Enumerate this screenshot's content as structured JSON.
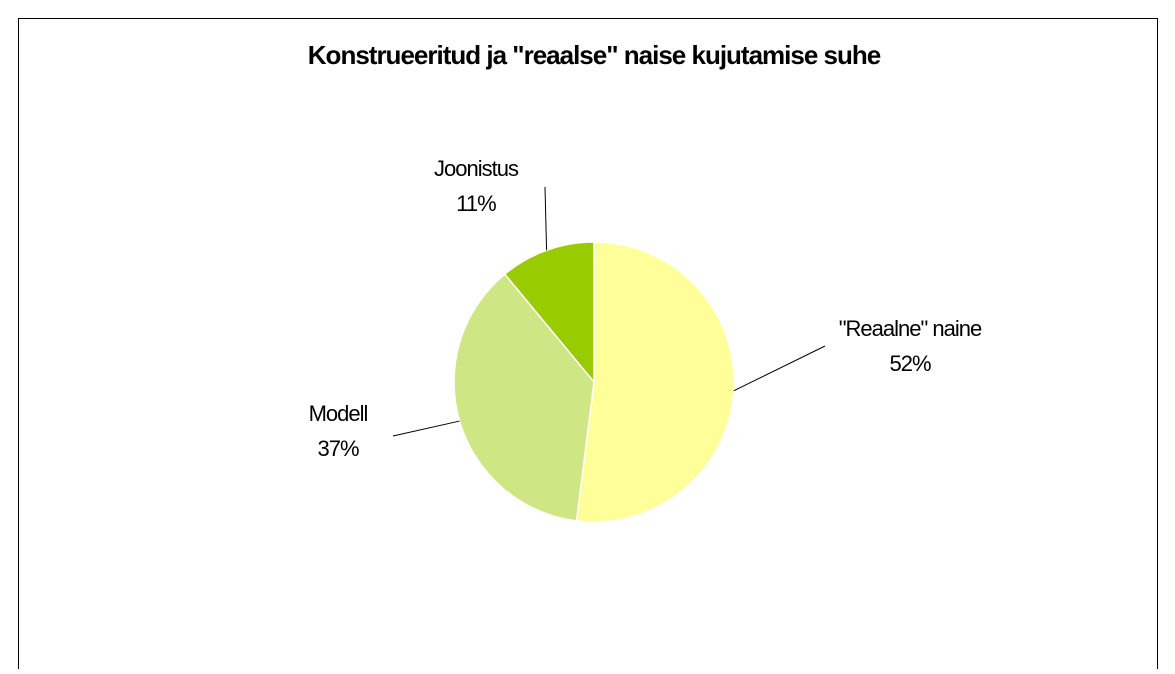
{
  "chart_data": {
    "type": "pie",
    "title": "Konstrueeritud ja \"reaalse\" naise kujutamise suhe",
    "categories": [
      "\"Reaalne\" naine",
      "Modell",
      "Joonistus"
    ],
    "values": [
      52,
      37,
      11
    ],
    "value_labels": [
      "52%",
      "37%",
      "11%"
    ],
    "colors": [
      "#ffff99",
      "#cfe685",
      "#99cc00"
    ]
  }
}
